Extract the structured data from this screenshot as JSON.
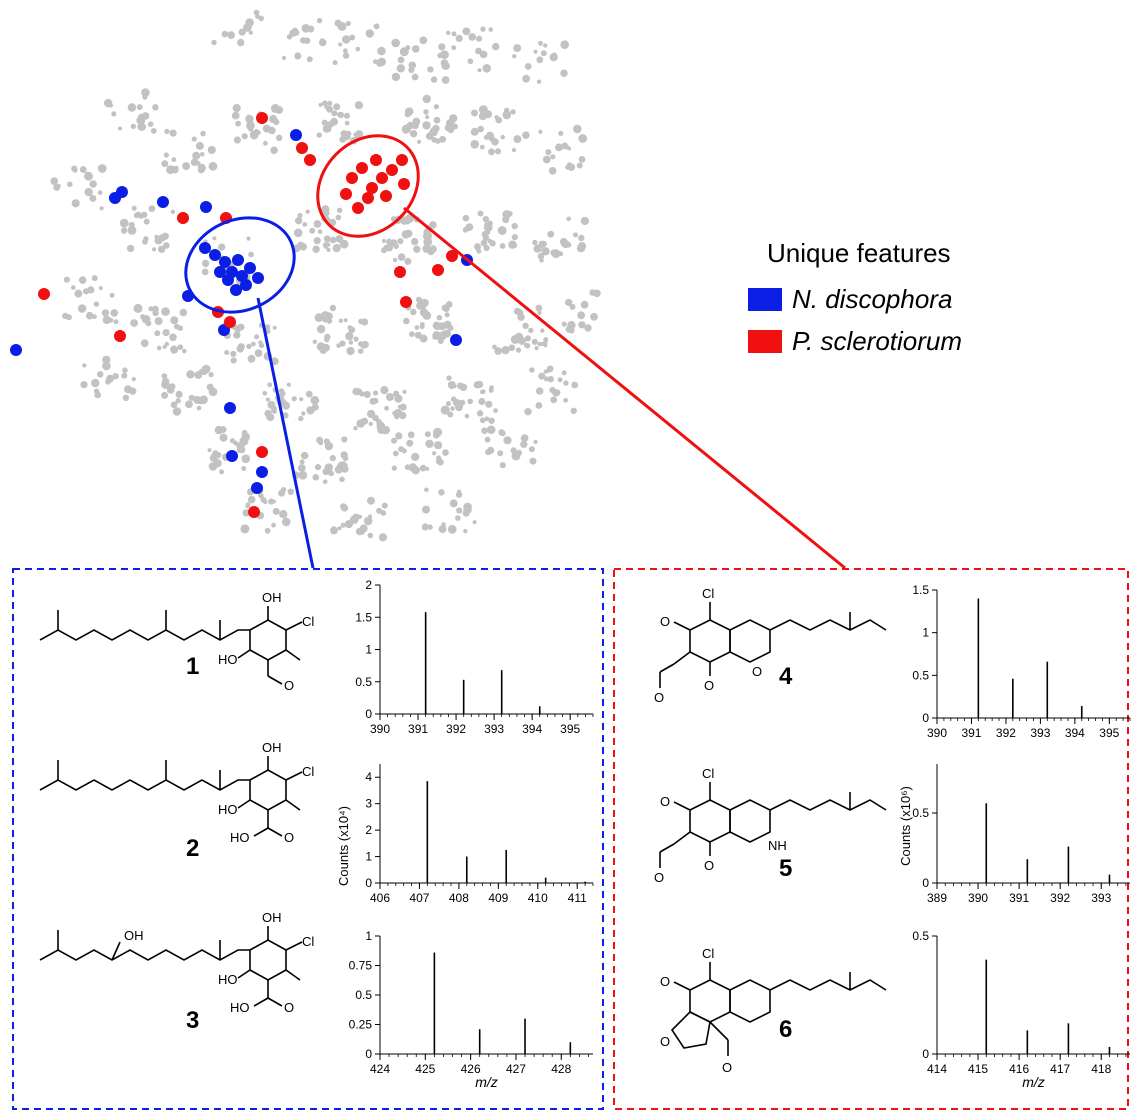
{
  "legend": {
    "title": "Unique features",
    "items": [
      {
        "label": "N. discophora",
        "color": "#0a1ee6"
      },
      {
        "label": "P. sclerotiorum",
        "color": "#f01010"
      }
    ]
  },
  "compounds": {
    "c1": "1",
    "c2": "2",
    "c3": "3",
    "c4": "4",
    "c5": "5",
    "c6": "6"
  },
  "atoms": {
    "oh": "OH",
    "ho": "HO",
    "cl": "Cl",
    "o": "O",
    "nh": "NH"
  },
  "y_axis_labels": {
    "left": "Counts (x10⁴)",
    "right": "Counts (x10⁶)"
  },
  "chart_data": [
    {
      "type": "bar",
      "id": "s1",
      "xlabel": "",
      "xlim": [
        390,
        395.6
      ],
      "ylim": [
        0,
        2
      ],
      "xticks": [
        "390",
        "391",
        "392",
        "393",
        "394",
        "395"
      ],
      "yticks": [
        "0",
        "0.5",
        "1",
        "1.5",
        "2"
      ],
      "x": [
        391.2,
        392.2,
        393.2,
        394.2,
        395.2
      ],
      "values": [
        1.58,
        0.53,
        0.68,
        0.12,
        0.01
      ]
    },
    {
      "type": "bar",
      "id": "s2",
      "xlabel": "",
      "xlim": [
        406,
        411.4
      ],
      "ylim": [
        0,
        4.5
      ],
      "xticks": [
        "406",
        "407",
        "408",
        "409",
        "410",
        "411"
      ],
      "yticks": [
        "0",
        "1",
        "2",
        "3",
        "4"
      ],
      "x": [
        407.2,
        408.2,
        409.2,
        410.2,
        411.2
      ],
      "values": [
        3.85,
        1.0,
        1.25,
        0.2,
        0.05
      ]
    },
    {
      "type": "bar",
      "id": "s3",
      "xlabel": "m/z",
      "xlim": [
        424,
        428.7
      ],
      "ylim": [
        0,
        1
      ],
      "xticks": [
        "424",
        "425",
        "426",
        "427",
        "428"
      ],
      "yticks": [
        "0",
        "0.25",
        "0.5",
        "0.75",
        "1"
      ],
      "x": [
        425.2,
        426.2,
        427.2,
        428.2
      ],
      "values": [
        0.86,
        0.21,
        0.3,
        0.1
      ]
    },
    {
      "type": "bar",
      "id": "s4",
      "xlabel": "",
      "xlim": [
        390,
        395.6
      ],
      "ylim": [
        0,
        1.5
      ],
      "xticks": [
        "390",
        "391",
        "392",
        "393",
        "394",
        "395"
      ],
      "yticks": [
        "0",
        "0.5",
        "1",
        "1.5"
      ],
      "x": [
        391.2,
        392.2,
        393.2,
        394.2
      ],
      "values": [
        1.4,
        0.46,
        0.66,
        0.14
      ]
    },
    {
      "type": "bar",
      "id": "s5",
      "xlabel": "",
      "xlim": [
        389,
        393.7
      ],
      "ylim": [
        0,
        0.85
      ],
      "xticks": [
        "389",
        "390",
        "391",
        "392",
        "393"
      ],
      "yticks": [
        "0",
        "0.5"
      ],
      "x": [
        390.2,
        391.2,
        392.2,
        393.2
      ],
      "values": [
        0.57,
        0.17,
        0.26,
        0.06
      ]
    },
    {
      "type": "bar",
      "id": "s6",
      "xlabel": "m/z",
      "xlim": [
        414,
        418.7
      ],
      "ylim": [
        0,
        0.5
      ],
      "xticks": [
        "414",
        "415",
        "416",
        "417",
        "418"
      ],
      "yticks": [
        "0",
        "0.5"
      ],
      "x": [
        415.2,
        416.2,
        417.2,
        418.2
      ],
      "values": [
        0.4,
        0.1,
        0.13,
        0.03
      ]
    }
  ]
}
